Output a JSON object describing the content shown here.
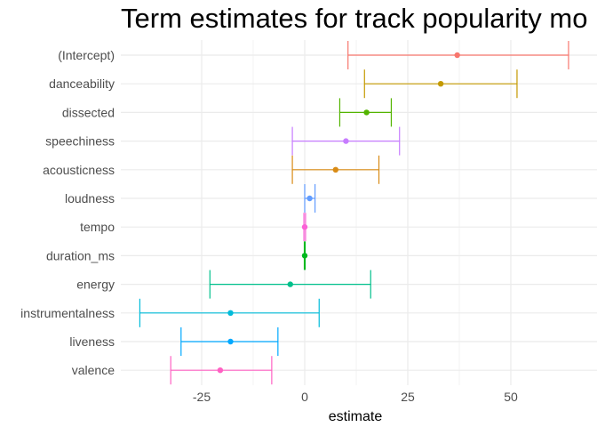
{
  "chart_data": {
    "type": "errorbar",
    "title": "Term estimates for track popularity mo",
    "xlabel": "estimate",
    "ylabel": "",
    "xlim": [
      -40,
      63
    ],
    "x_ticks": [
      -25,
      0,
      25,
      50
    ],
    "x_tick_labels": [
      "-25",
      "0",
      "25",
      "50"
    ],
    "grid": true,
    "legend": "none",
    "terms": [
      {
        "term": "(Intercept)",
        "estimate": 37,
        "low": 10.5,
        "high": 64,
        "color": "#F8766D"
      },
      {
        "term": "danceability",
        "estimate": 33,
        "low": 14.5,
        "high": 51.5,
        "color": "#C49A00"
      },
      {
        "term": "dissected",
        "estimate": 15,
        "low": 8.5,
        "high": 21,
        "color": "#53B400"
      },
      {
        "term": "speechiness",
        "estimate": 10,
        "low": -3,
        "high": 23,
        "color": "#C77CFF"
      },
      {
        "term": "acousticness",
        "estimate": 7.5,
        "low": -3,
        "high": 18,
        "color": "#D98B15"
      },
      {
        "term": "loudness",
        "estimate": 1.2,
        "low": 0,
        "high": 2.5,
        "color": "#619CFF"
      },
      {
        "term": "tempo",
        "estimate": 0,
        "low": -0.2,
        "high": 0.2,
        "color": "#FB61D7"
      },
      {
        "term": "duration_ms",
        "estimate": 0,
        "low": -0.1,
        "high": 0.1,
        "color": "#00B81F"
      },
      {
        "term": "energy",
        "estimate": -3.5,
        "low": -23,
        "high": 16,
        "color": "#00C08B"
      },
      {
        "term": "instrumentalness",
        "estimate": -18,
        "low": -40,
        "high": 3.5,
        "color": "#00BBDA"
      },
      {
        "term": "liveness",
        "estimate": -18,
        "low": -30,
        "high": -6.5,
        "color": "#00A9FF"
      },
      {
        "term": "valence",
        "estimate": -20.5,
        "low": -32.5,
        "high": -8,
        "color": "#FF61C3"
      }
    ]
  },
  "colors": {
    "background": "#FFFFFF",
    "grid": "#EBEBEB",
    "text": "#4D4D4D"
  }
}
